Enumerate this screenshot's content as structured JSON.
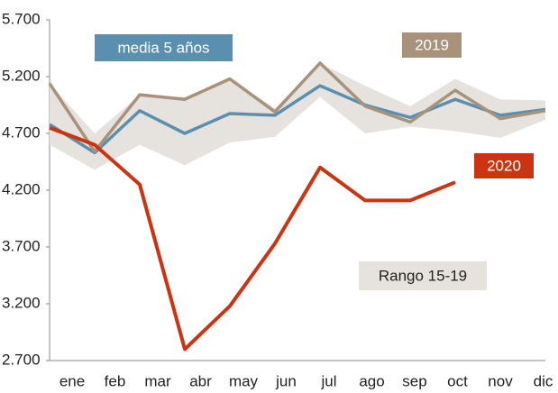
{
  "chart_data": {
    "type": "line",
    "categories": [
      "ene",
      "feb",
      "mar",
      "abr",
      "may",
      "jun",
      "jul",
      "ago",
      "sep",
      "oct",
      "nov",
      "dic"
    ],
    "ylim": [
      2700,
      5700
    ],
    "yticks": [
      {
        "value": 2700,
        "label": "2.700"
      },
      {
        "value": 3200,
        "label": "3.200"
      },
      {
        "value": 3700,
        "label": "3.700"
      },
      {
        "value": 4200,
        "label": "4.200"
      },
      {
        "value": 4700,
        "label": "4.700"
      },
      {
        "value": 5200,
        "label": "5.200"
      },
      {
        "value": 5700,
        "label": "5.700"
      }
    ],
    "band": {
      "name": "Rango 15-19",
      "color": "#e6e3df",
      "low": [
        4600,
        4380,
        4600,
        4420,
        4620,
        4670,
        5020,
        4700,
        4760,
        4720,
        4660,
        4820
      ],
      "high": [
        5140,
        4700,
        5040,
        5020,
        5180,
        4920,
        5320,
        5120,
        4940,
        5180,
        5000,
        4990
      ]
    },
    "series": [
      {
        "name": "media 5 años",
        "color": "#5b8fb0",
        "values": [
          4780,
          4530,
          4900,
          4700,
          4875,
          4860,
          5120,
          4950,
          4840,
          5000,
          4860,
          4910
        ]
      },
      {
        "name": "2019",
        "color": "#a89279",
        "values": [
          5140,
          4540,
          5040,
          5000,
          5180,
          4890,
          5320,
          4940,
          4800,
          5080,
          4830,
          4900
        ]
      },
      {
        "name": "2020",
        "color": "#cc3310",
        "values": [
          4750,
          4600,
          4250,
          2800,
          3180,
          3730,
          4400,
          4110,
          4110,
          4270,
          null,
          null
        ]
      }
    ]
  }
}
